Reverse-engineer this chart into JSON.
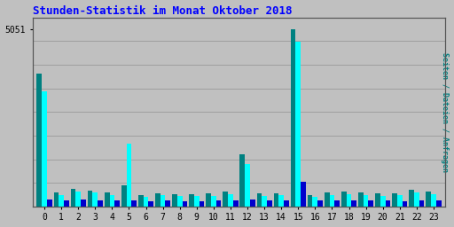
{
  "title": "Stunden-Statistik im Monat Oktober 2018",
  "ylabel_right": "Seiten / Dateien / Anfragen",
  "ytick_label": "5051",
  "hours": [
    0,
    1,
    2,
    3,
    4,
    5,
    6,
    7,
    8,
    9,
    10,
    11,
    12,
    13,
    14,
    15,
    16,
    17,
    18,
    19,
    20,
    21,
    22,
    23
  ],
  "seiten": [
    3800,
    400,
    500,
    450,
    400,
    600,
    320,
    380,
    350,
    350,
    370,
    420,
    1500,
    370,
    380,
    5051,
    320,
    400,
    420,
    400,
    370,
    380,
    480,
    430
  ],
  "dateien": [
    3300,
    330,
    420,
    390,
    330,
    1800,
    270,
    320,
    290,
    290,
    310,
    350,
    1200,
    310,
    320,
    4700,
    270,
    330,
    350,
    330,
    310,
    320,
    400,
    360
  ],
  "anfragen": [
    200,
    170,
    200,
    185,
    170,
    185,
    155,
    170,
    155,
    155,
    170,
    185,
    200,
    170,
    170,
    700,
    170,
    185,
    185,
    185,
    170,
    155,
    185,
    185
  ],
  "color_seiten": "#008080",
  "color_dateien": "#00FFFF",
  "color_anfragen": "#0000CD",
  "background_color": "#C0C0C0",
  "title_color": "#0000FF",
  "right_label_color": "#008080",
  "grid_color": "#999999",
  "ymax": 5400
}
